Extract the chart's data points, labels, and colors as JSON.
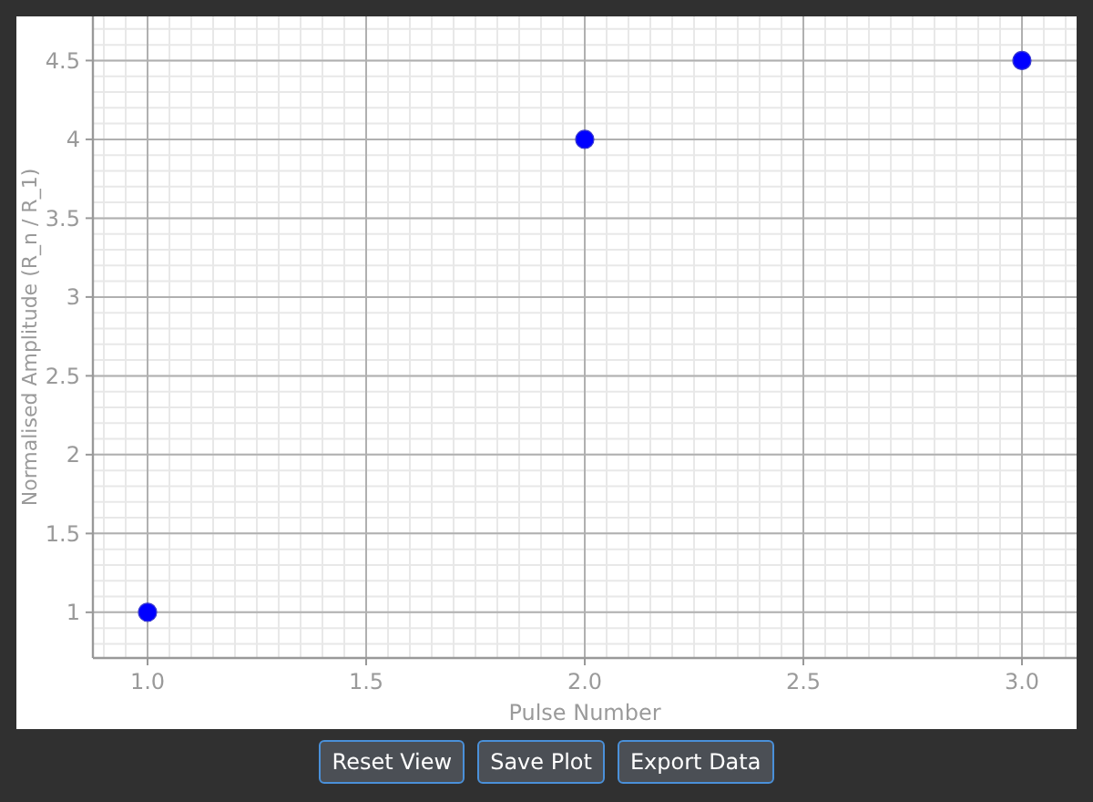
{
  "chart_data": {
    "type": "scatter",
    "xlabel": "Pulse Number",
    "ylabel": "Normalised Amplitude (R_n / R_1)",
    "x": [
      1,
      2,
      3
    ],
    "series": [
      {
        "color": "#0000ff",
        "values": [
          1,
          4,
          4.5
        ]
      }
    ],
    "xlim": [
      0.875,
      3.125
    ],
    "ylim": [
      0.71,
      4.78
    ],
    "xticks": [
      {
        "value": 1,
        "label": "1.0"
      },
      {
        "value": 1.5,
        "label": "1.5"
      },
      {
        "value": 2,
        "label": "2.0"
      },
      {
        "value": 2.5,
        "label": "2.5"
      },
      {
        "value": 3,
        "label": "3.0"
      }
    ],
    "yticks": [
      1,
      1.5,
      2,
      2.5,
      3,
      3.5,
      4,
      4.5
    ],
    "grid": true,
    "marker": "circle",
    "annotations": [
      "Reset View",
      "Save Plot",
      "Export Data"
    ]
  }
}
